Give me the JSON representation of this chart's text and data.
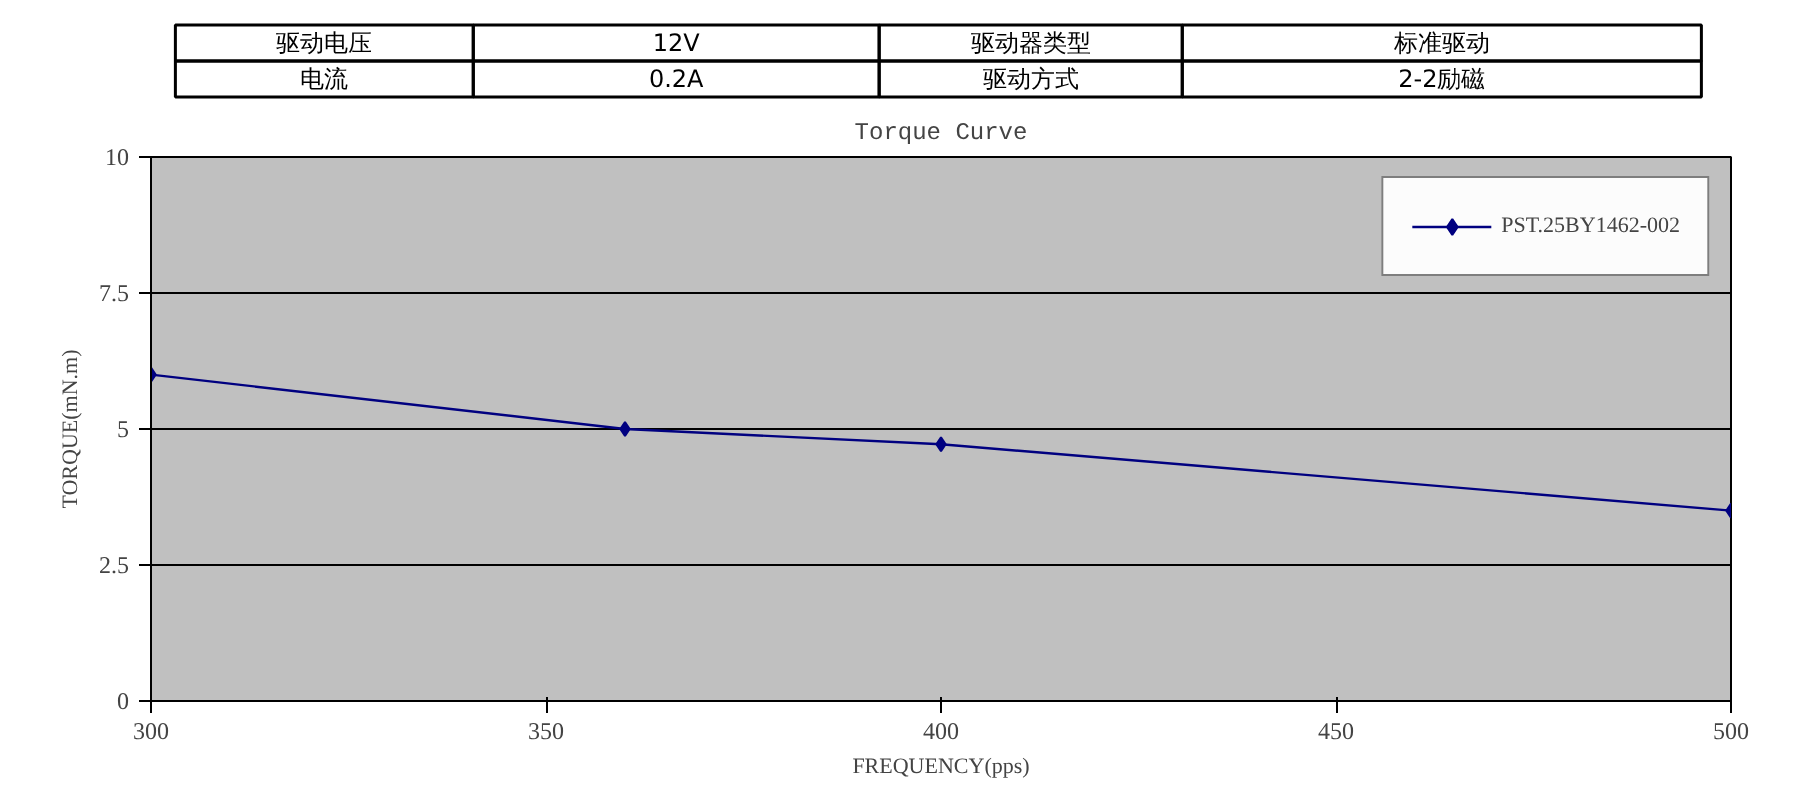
{
  "chart_data": {
    "type": "line",
    "title": "Torque Curve",
    "xlabel": "FREQUENCY(pps)",
    "ylabel": "TORQUE(mN.m)",
    "annotations": [
      "驱动电压",
      "12V",
      "驱动器类型",
      "标准驱动",
      "电流",
      "0.2A",
      "驱动方式",
      "2-2励磁"
    ],
    "x": [
      300,
      360,
      400,
      500
    ],
    "series": [
      {
        "name": "PST.25BY1462-002",
        "color": "#000080",
        "values": [
          6,
          5,
          4.72,
          3.5
        ]
      }
    ],
    "xlim": [
      300,
      500
    ],
    "xticks": [
      300,
      350,
      400,
      450,
      500
    ],
    "ylim": [
      0,
      10
    ],
    "yticks": [
      0,
      2.5,
      5,
      7.5,
      10
    ],
    "grid": "y",
    "legend": "top right",
    "marker": "diamond",
    "line_style": "solid"
  }
}
